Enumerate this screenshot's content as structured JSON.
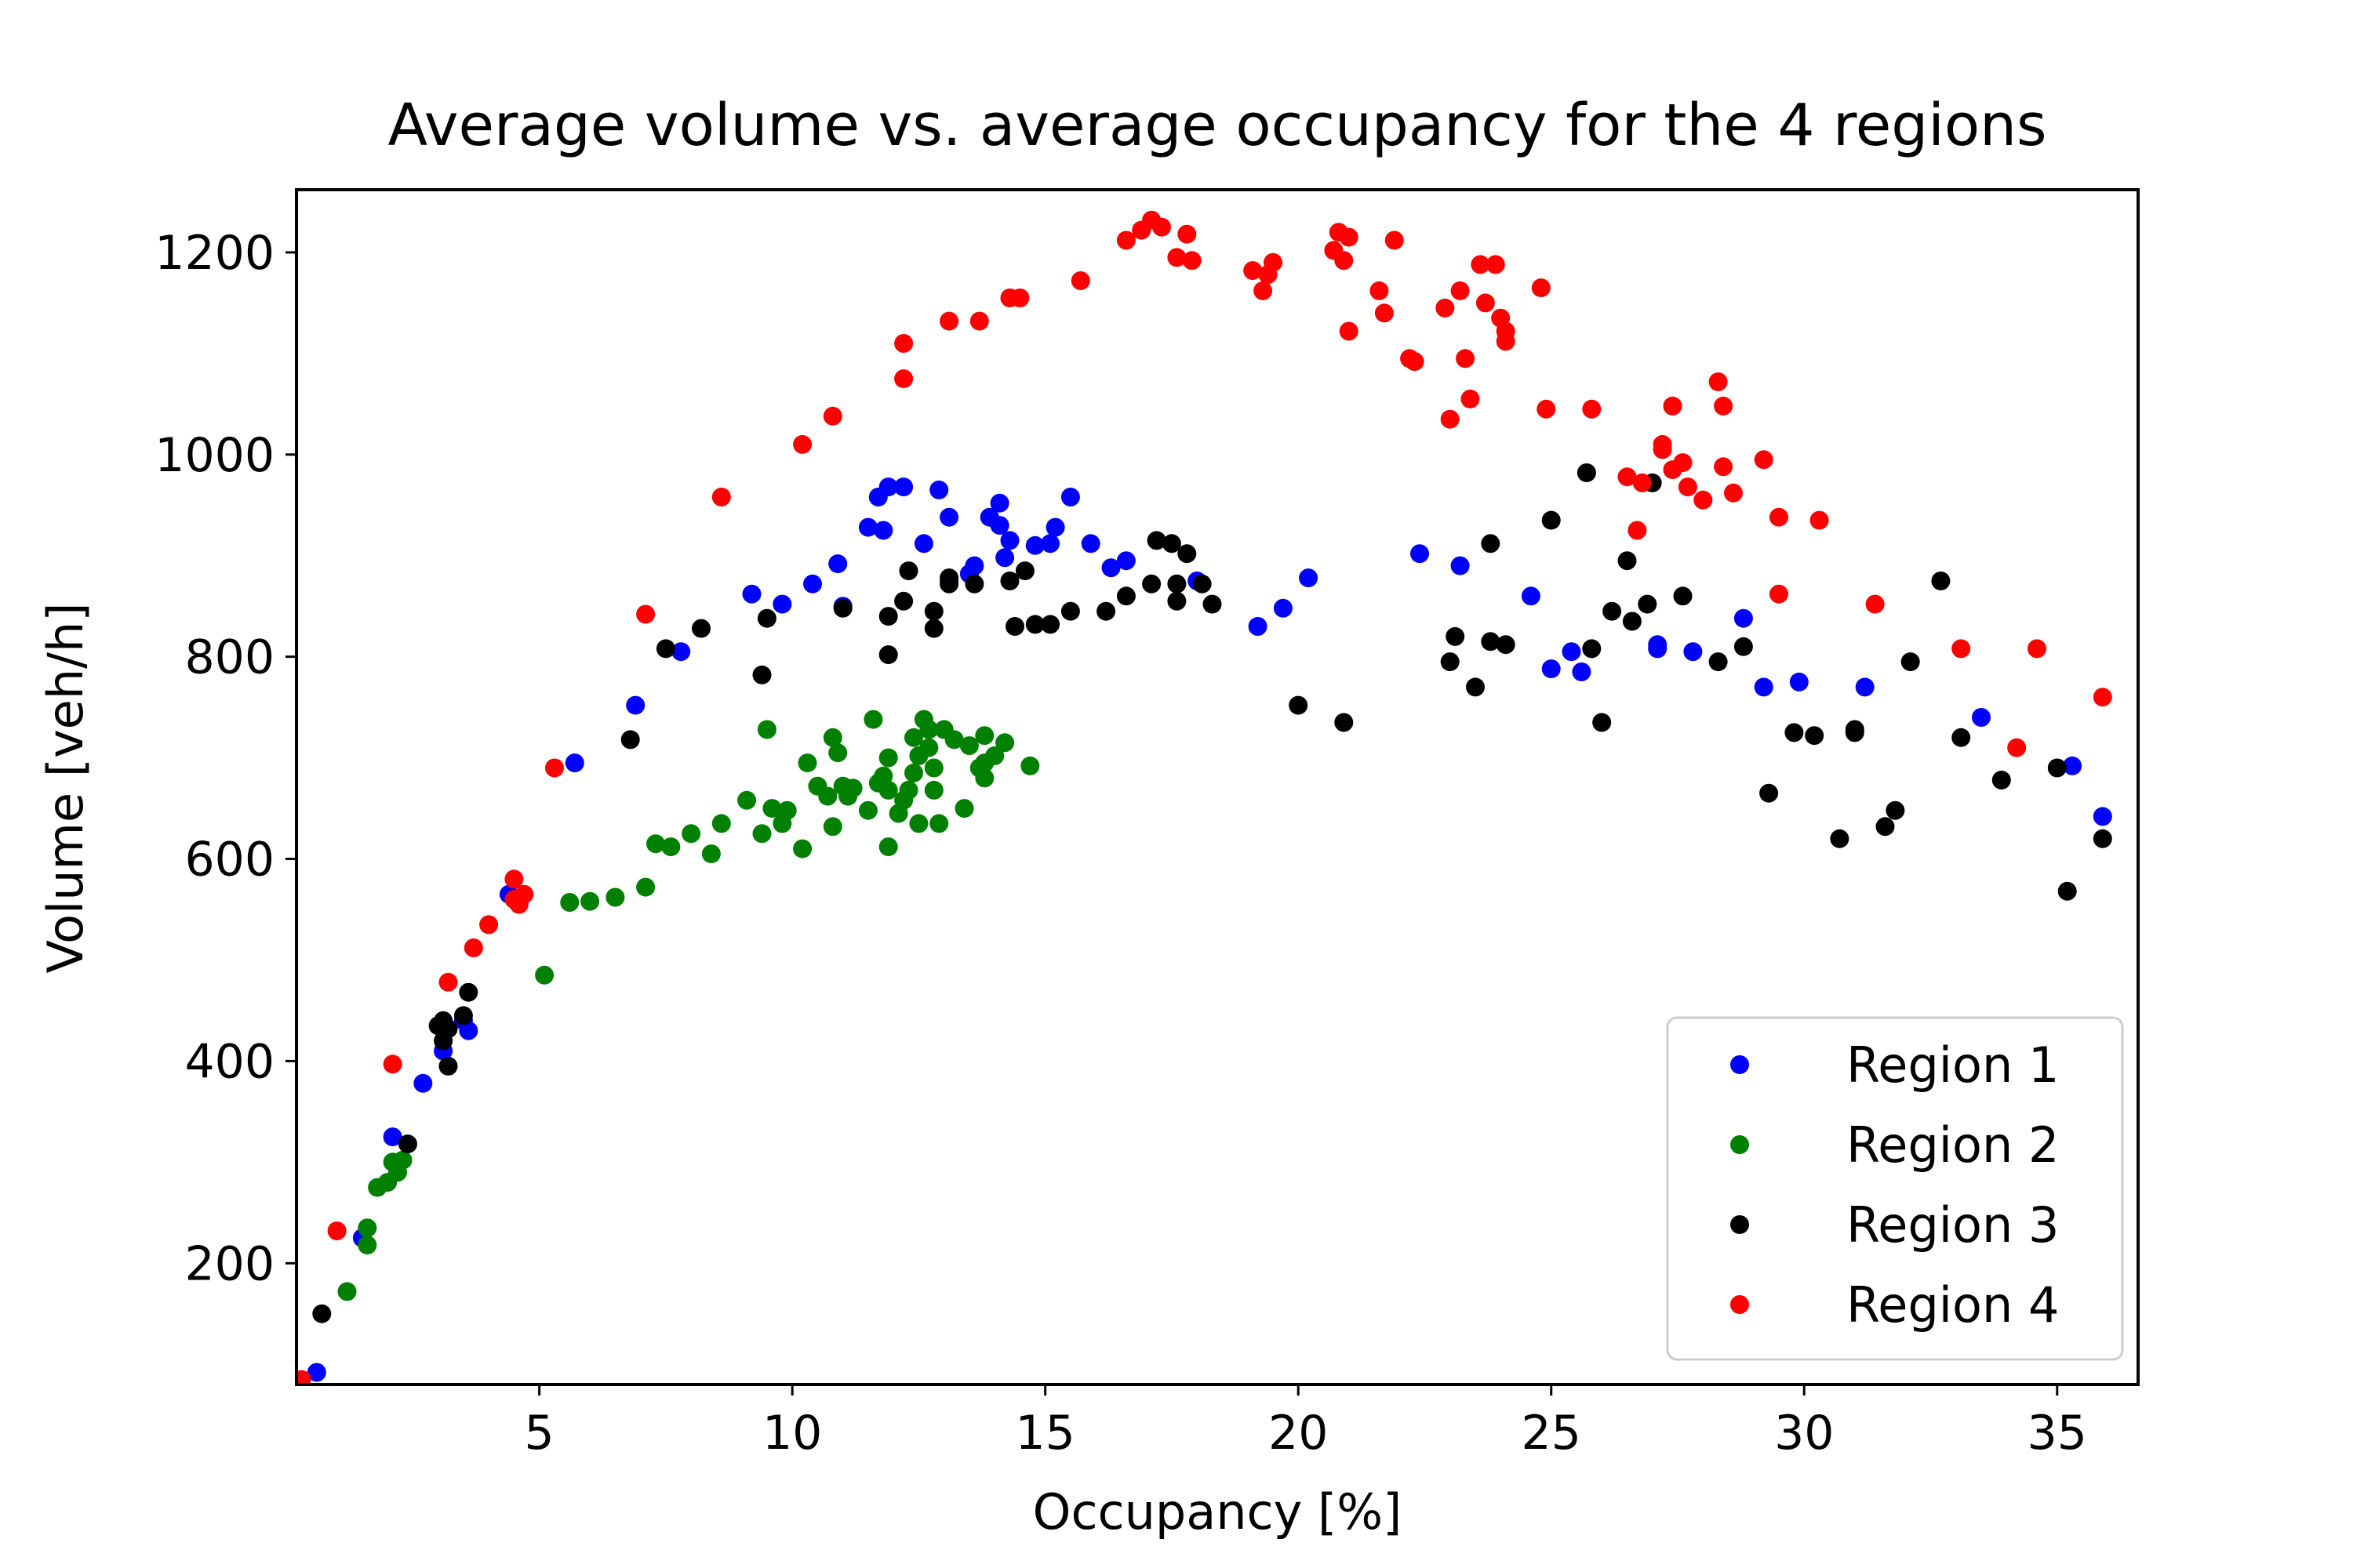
{
  "chart_data": {
    "type": "scatter",
    "title": "Average volume vs. average occupancy for the 4 regions",
    "xlabel": "Occupancy [%]",
    "ylabel": "Volume [veh/h]",
    "xlim": [
      0.2,
      36.6
    ],
    "ylim": [
      80,
      1262
    ],
    "xticks": [
      5,
      10,
      15,
      20,
      25,
      30,
      35
    ],
    "yticks": [
      200,
      400,
      600,
      800,
      1000,
      1200
    ],
    "grid": false,
    "legend": "bottom-right",
    "series": [
      {
        "name": "Region 1",
        "color": "#0000ff",
        "points": [
          [
            0.6,
            92
          ],
          [
            1.5,
            225
          ],
          [
            2.1,
            325
          ],
          [
            2.7,
            378
          ],
          [
            3.1,
            410
          ],
          [
            3.6,
            430
          ],
          [
            3.5,
            440
          ],
          [
            4.4,
            565
          ],
          [
            5.7,
            695
          ],
          [
            6.9,
            752
          ],
          [
            7.8,
            805
          ],
          [
            9.2,
            862
          ],
          [
            9.8,
            852
          ],
          [
            10.4,
            872
          ],
          [
            10.9,
            892
          ],
          [
            11.0,
            850
          ],
          [
            11.5,
            928
          ],
          [
            11.7,
            958
          ],
          [
            11.9,
            968
          ],
          [
            12.2,
            968
          ],
          [
            11.8,
            925
          ],
          [
            12.6,
            912
          ],
          [
            12.9,
            965
          ],
          [
            13.1,
            938
          ],
          [
            13.1,
            875
          ],
          [
            13.5,
            882
          ],
          [
            13.6,
            890
          ],
          [
            13.9,
            938
          ],
          [
            14.1,
            952
          ],
          [
            14.1,
            930
          ],
          [
            14.3,
            915
          ],
          [
            14.2,
            898
          ],
          [
            14.8,
            910
          ],
          [
            15.1,
            912
          ],
          [
            15.2,
            928
          ],
          [
            15.5,
            958
          ],
          [
            15.9,
            912
          ],
          [
            16.3,
            888
          ],
          [
            16.6,
            895
          ],
          [
            18.0,
            875
          ],
          [
            19.2,
            830
          ],
          [
            19.7,
            848
          ],
          [
            20.2,
            878
          ],
          [
            22.4,
            902
          ],
          [
            23.2,
            890
          ],
          [
            24.6,
            860
          ],
          [
            25.0,
            788
          ],
          [
            25.4,
            805
          ],
          [
            25.6,
            785
          ],
          [
            27.1,
            808
          ],
          [
            27.1,
            812
          ],
          [
            27.8,
            805
          ],
          [
            28.8,
            838
          ],
          [
            29.2,
            770
          ],
          [
            29.9,
            775
          ],
          [
            31.2,
            770
          ],
          [
            33.5,
            740
          ],
          [
            35.3,
            692
          ],
          [
            35.9,
            642
          ]
        ]
      },
      {
        "name": "Region 2",
        "color": "#008000",
        "points": [
          [
            1.2,
            172
          ],
          [
            1.6,
            218
          ],
          [
            1.6,
            235
          ],
          [
            1.8,
            275
          ],
          [
            2.0,
            280
          ],
          [
            2.1,
            300
          ],
          [
            2.2,
            290
          ],
          [
            2.3,
            302
          ],
          [
            5.1,
            485
          ],
          [
            5.6,
            557
          ],
          [
            6.0,
            558
          ],
          [
            6.5,
            562
          ],
          [
            7.1,
            572
          ],
          [
            7.3,
            615
          ],
          [
            7.6,
            612
          ],
          [
            8.0,
            625
          ],
          [
            8.4,
            605
          ],
          [
            8.6,
            635
          ],
          [
            9.1,
            658
          ],
          [
            9.4,
            625
          ],
          [
            9.5,
            728
          ],
          [
            9.6,
            650
          ],
          [
            9.8,
            635
          ],
          [
            9.9,
            648
          ],
          [
            10.2,
            610
          ],
          [
            10.3,
            695
          ],
          [
            10.5,
            672
          ],
          [
            10.7,
            662
          ],
          [
            10.8,
            720
          ],
          [
            10.8,
            632
          ],
          [
            10.9,
            705
          ],
          [
            11.0,
            672
          ],
          [
            11.1,
            662
          ],
          [
            11.2,
            670
          ],
          [
            11.5,
            648
          ],
          [
            11.6,
            738
          ],
          [
            11.7,
            675
          ],
          [
            11.8,
            682
          ],
          [
            11.9,
            612
          ],
          [
            11.9,
            700
          ],
          [
            11.9,
            668
          ],
          [
            12.1,
            645
          ],
          [
            12.2,
            658
          ],
          [
            12.3,
            668
          ],
          [
            12.4,
            685
          ],
          [
            12.4,
            720
          ],
          [
            12.5,
            635
          ],
          [
            12.5,
            702
          ],
          [
            12.6,
            738
          ],
          [
            12.7,
            728
          ],
          [
            12.7,
            710
          ],
          [
            12.8,
            690
          ],
          [
            12.8,
            668
          ],
          [
            12.9,
            635
          ],
          [
            13.0,
            728
          ],
          [
            13.2,
            718
          ],
          [
            13.4,
            650
          ],
          [
            13.5,
            712
          ],
          [
            13.7,
            690
          ],
          [
            13.8,
            722
          ],
          [
            13.8,
            695
          ],
          [
            13.8,
            680
          ],
          [
            14.0,
            702
          ],
          [
            14.2,
            715
          ],
          [
            14.7,
            692
          ]
        ]
      },
      {
        "name": "Region 3",
        "color": "#000000",
        "points": [
          [
            0.7,
            150
          ],
          [
            2.4,
            318
          ],
          [
            3.0,
            435
          ],
          [
            3.1,
            420
          ],
          [
            3.1,
            440
          ],
          [
            3.2,
            395
          ],
          [
            3.2,
            432
          ],
          [
            3.5,
            445
          ],
          [
            3.6,
            468
          ],
          [
            6.8,
            718
          ],
          [
            7.5,
            808
          ],
          [
            8.2,
            828
          ],
          [
            9.4,
            782
          ],
          [
            9.5,
            838
          ],
          [
            11.0,
            848
          ],
          [
            11.9,
            840
          ],
          [
            11.9,
            802
          ],
          [
            12.2,
            855
          ],
          [
            12.3,
            885
          ],
          [
            12.8,
            828
          ],
          [
            12.8,
            845
          ],
          [
            13.1,
            872
          ],
          [
            13.1,
            878
          ],
          [
            13.6,
            872
          ],
          [
            14.3,
            875
          ],
          [
            14.4,
            830
          ],
          [
            14.6,
            885
          ],
          [
            14.8,
            832
          ],
          [
            15.1,
            832
          ],
          [
            15.5,
            845
          ],
          [
            16.2,
            845
          ],
          [
            16.6,
            860
          ],
          [
            17.1,
            872
          ],
          [
            17.2,
            915
          ],
          [
            17.5,
            912
          ],
          [
            17.6,
            855
          ],
          [
            17.6,
            872
          ],
          [
            17.8,
            902
          ],
          [
            18.1,
            872
          ],
          [
            18.3,
            852
          ],
          [
            20.0,
            752
          ],
          [
            20.9,
            735
          ],
          [
            23.0,
            795
          ],
          [
            23.1,
            820
          ],
          [
            23.5,
            770
          ],
          [
            23.8,
            912
          ],
          [
            23.8,
            815
          ],
          [
            24.1,
            812
          ],
          [
            25.0,
            935
          ],
          [
            25.7,
            982
          ],
          [
            25.8,
            808
          ],
          [
            26.0,
            735
          ],
          [
            26.2,
            845
          ],
          [
            26.5,
            895
          ],
          [
            26.6,
            835
          ],
          [
            26.9,
            852
          ],
          [
            27.0,
            972
          ],
          [
            27.6,
            860
          ],
          [
            28.3,
            795
          ],
          [
            28.8,
            810
          ],
          [
            29.3,
            665
          ],
          [
            29.8,
            725
          ],
          [
            30.2,
            722
          ],
          [
            30.7,
            620
          ],
          [
            31.0,
            728
          ],
          [
            31.0,
            725
          ],
          [
            31.6,
            632
          ],
          [
            31.8,
            648
          ],
          [
            32.1,
            795
          ],
          [
            32.7,
            875
          ],
          [
            33.1,
            720
          ],
          [
            33.9,
            678
          ],
          [
            35.0,
            690
          ],
          [
            35.2,
            568
          ],
          [
            35.9,
            620
          ]
        ]
      },
      {
        "name": "Region 4",
        "color": "#ff0000",
        "points": [
          [
            0.3,
            85
          ],
          [
            1.0,
            232
          ],
          [
            2.1,
            397
          ],
          [
            3.2,
            478
          ],
          [
            3.7,
            512
          ],
          [
            4.0,
            535
          ],
          [
            4.5,
            580
          ],
          [
            4.5,
            560
          ],
          [
            4.6,
            555
          ],
          [
            4.7,
            565
          ],
          [
            5.3,
            690
          ],
          [
            7.1,
            842
          ],
          [
            8.6,
            958
          ],
          [
            10.2,
            1010
          ],
          [
            10.8,
            1038
          ],
          [
            12.2,
            1110
          ],
          [
            12.2,
            1075
          ],
          [
            13.1,
            1132
          ],
          [
            13.7,
            1132
          ],
          [
            14.3,
            1155
          ],
          [
            14.5,
            1155
          ],
          [
            15.7,
            1172
          ],
          [
            16.6,
            1212
          ],
          [
            16.9,
            1222
          ],
          [
            17.1,
            1232
          ],
          [
            17.3,
            1225
          ],
          [
            17.6,
            1195
          ],
          [
            17.8,
            1218
          ],
          [
            17.9,
            1192
          ],
          [
            19.1,
            1182
          ],
          [
            19.3,
            1162
          ],
          [
            19.4,
            1178
          ],
          [
            19.5,
            1190
          ],
          [
            20.7,
            1202
          ],
          [
            20.8,
            1220
          ],
          [
            20.9,
            1192
          ],
          [
            21.0,
            1215
          ],
          [
            21.0,
            1122
          ],
          [
            21.6,
            1162
          ],
          [
            21.7,
            1140
          ],
          [
            21.9,
            1212
          ],
          [
            22.2,
            1095
          ],
          [
            22.3,
            1092
          ],
          [
            22.9,
            1145
          ],
          [
            23.0,
            1035
          ],
          [
            23.2,
            1162
          ],
          [
            23.3,
            1095
          ],
          [
            23.4,
            1055
          ],
          [
            23.6,
            1188
          ],
          [
            23.7,
            1150
          ],
          [
            23.9,
            1188
          ],
          [
            24.0,
            1135
          ],
          [
            24.1,
            1122
          ],
          [
            24.1,
            1112
          ],
          [
            24.8,
            1165
          ],
          [
            24.9,
            1045
          ],
          [
            25.8,
            1045
          ],
          [
            26.5,
            978
          ],
          [
            26.7,
            925
          ],
          [
            26.8,
            972
          ],
          [
            27.2,
            1005
          ],
          [
            27.2,
            1010
          ],
          [
            27.4,
            1048
          ],
          [
            27.4,
            985
          ],
          [
            27.6,
            992
          ],
          [
            27.7,
            968
          ],
          [
            28.0,
            955
          ],
          [
            28.3,
            1072
          ],
          [
            28.4,
            1048
          ],
          [
            28.4,
            988
          ],
          [
            28.6,
            962
          ],
          [
            29.2,
            995
          ],
          [
            29.5,
            862
          ],
          [
            29.5,
            938
          ],
          [
            30.3,
            935
          ],
          [
            31.4,
            852
          ],
          [
            33.1,
            808
          ],
          [
            34.2,
            710
          ],
          [
            34.6,
            808
          ],
          [
            35.9,
            760
          ]
        ]
      }
    ]
  }
}
